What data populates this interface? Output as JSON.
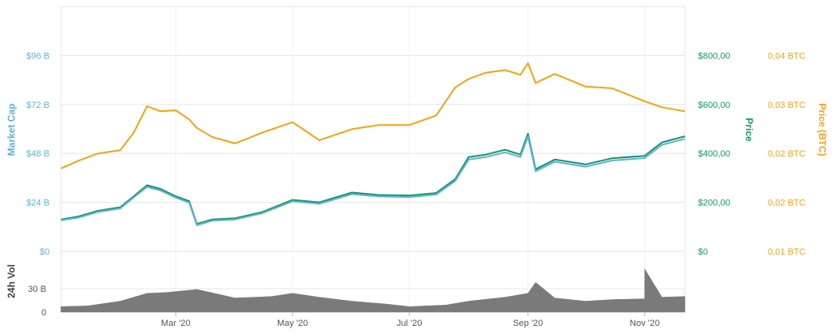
{
  "chart_data": {
    "type": "line",
    "axes": {
      "market_cap": {
        "title": "Market Cap",
        "ticks": [
          "$96 B",
          "$72 B",
          "$48 B",
          "$24 B",
          "$0"
        ],
        "tick_values": [
          96,
          72,
          48,
          24,
          0
        ],
        "range": [
          0,
          120
        ],
        "color": "#5fb2d8"
      },
      "price": {
        "title": "Price",
        "ticks": [
          "$800,00",
          "$600,00",
          "$400,00",
          "$200,00",
          "$0"
        ],
        "tick_values": [
          800,
          600,
          400,
          200,
          0
        ],
        "range": [
          0,
          1000
        ],
        "color": "#14966d"
      },
      "price_btc": {
        "title": "Price (BTC)",
        "ticks": [
          "0,04 BTC",
          "0,03 BTC",
          "0,02 BTC",
          "0,02 BTC",
          "0,01 BTC"
        ],
        "color": "#f5a214"
      },
      "volume": {
        "title": "24h Vol",
        "ticks": [
          "30 B",
          "0"
        ],
        "tick_values": [
          30,
          0
        ],
        "range": [
          0,
          60
        ],
        "color": "#7a7a7a"
      }
    },
    "x_axis": {
      "ticks": [
        "Mar '20",
        "May '20",
        "Jul '20",
        "Sep '20",
        "Nov '20"
      ],
      "tick_dates": [
        "2020-03-01",
        "2020-05-01",
        "2020-07-01",
        "2020-09-01",
        "2020-11-01"
      ],
      "range": [
        "2020-01-01",
        "2020-11-22"
      ]
    },
    "series": [
      {
        "axis": "price",
        "color": "#14966d",
        "points": [
          [
            "2020-01-01",
            130
          ],
          [
            "2020-01-10",
            142
          ],
          [
            "2020-01-20",
            165
          ],
          [
            "2020-02-01",
            180
          ],
          [
            "2020-02-08",
            225
          ],
          [
            "2020-02-15",
            270
          ],
          [
            "2020-02-22",
            255
          ],
          [
            "2020-03-01",
            225
          ],
          [
            "2020-03-08",
            205
          ],
          [
            "2020-03-12",
            112
          ],
          [
            "2020-03-20",
            130
          ],
          [
            "2020-04-01",
            135
          ],
          [
            "2020-04-15",
            160
          ],
          [
            "2020-05-01",
            210
          ],
          [
            "2020-05-15",
            200
          ],
          [
            "2020-06-01",
            240
          ],
          [
            "2020-06-15",
            230
          ],
          [
            "2020-07-01",
            228
          ],
          [
            "2020-07-15",
            238
          ],
          [
            "2020-07-25",
            295
          ],
          [
            "2020-08-01",
            385
          ],
          [
            "2020-08-10",
            395
          ],
          [
            "2020-08-20",
            415
          ],
          [
            "2020-08-28",
            395
          ],
          [
            "2020-09-01",
            480
          ],
          [
            "2020-09-05",
            335
          ],
          [
            "2020-09-15",
            375
          ],
          [
            "2020-10-01",
            355
          ],
          [
            "2020-10-15",
            380
          ],
          [
            "2020-11-01",
            390
          ],
          [
            "2020-11-10",
            445
          ],
          [
            "2020-11-22",
            470
          ]
        ]
      },
      {
        "axis": "market_cap",
        "color": "#5fb2d8",
        "points": [
          [
            "2020-01-01",
            15.2
          ],
          [
            "2020-01-10",
            16.5
          ],
          [
            "2020-01-20",
            19.2
          ],
          [
            "2020-02-01",
            21.0
          ],
          [
            "2020-02-08",
            26.4
          ],
          [
            "2020-02-15",
            31.6
          ],
          [
            "2020-02-22",
            29.8
          ],
          [
            "2020-03-01",
            26.3
          ],
          [
            "2020-03-08",
            23.9
          ],
          [
            "2020-03-12",
            12.8
          ],
          [
            "2020-03-20",
            15.0
          ],
          [
            "2020-04-01",
            15.6
          ],
          [
            "2020-04-15",
            18.6
          ],
          [
            "2020-05-01",
            24.5
          ],
          [
            "2020-05-15",
            23.3
          ],
          [
            "2020-06-01",
            28.0
          ],
          [
            "2020-06-15",
            26.9
          ],
          [
            "2020-07-01",
            26.6
          ],
          [
            "2020-07-15",
            27.8
          ],
          [
            "2020-07-25",
            34.5
          ],
          [
            "2020-08-01",
            45.0
          ],
          [
            "2020-08-10",
            46.2
          ],
          [
            "2020-08-20",
            48.5
          ],
          [
            "2020-08-28",
            46.2
          ],
          [
            "2020-09-01",
            56.3
          ],
          [
            "2020-09-05",
            39.2
          ],
          [
            "2020-09-15",
            43.9
          ],
          [
            "2020-10-01",
            41.5
          ],
          [
            "2020-10-15",
            44.5
          ],
          [
            "2020-11-01",
            45.7
          ],
          [
            "2020-11-10",
            52.2
          ],
          [
            "2020-11-22",
            55.1
          ]
        ]
      },
      {
        "axis": "price_btc",
        "color": "#f5a214",
        "points": [
          [
            "2020-01-01",
            0.018
          ],
          [
            "2020-01-10",
            0.019
          ],
          [
            "2020-01-20",
            0.02
          ],
          [
            "2020-02-01",
            0.0205
          ],
          [
            "2020-02-08",
            0.0232
          ],
          [
            "2020-02-15",
            0.028
          ],
          [
            "2020-02-22",
            0.027
          ],
          [
            "2020-03-01",
            0.0272
          ],
          [
            "2020-03-08",
            0.0255
          ],
          [
            "2020-03-12",
            0.024
          ],
          [
            "2020-03-20",
            0.0225
          ],
          [
            "2020-04-01",
            0.0215
          ],
          [
            "2020-04-15",
            0.0232
          ],
          [
            "2020-05-01",
            0.025
          ],
          [
            "2020-05-15",
            0.022
          ],
          [
            "2020-06-01",
            0.0238
          ],
          [
            "2020-06-15",
            0.0245
          ],
          [
            "2020-07-01",
            0.0245
          ],
          [
            "2020-07-15",
            0.0262
          ],
          [
            "2020-07-25",
            0.032
          ],
          [
            "2020-08-01",
            0.034
          ],
          [
            "2020-08-10",
            0.0355
          ],
          [
            "2020-08-20",
            0.0362
          ],
          [
            "2020-08-28",
            0.035
          ],
          [
            "2020-09-01",
            0.038
          ],
          [
            "2020-09-05",
            0.033
          ],
          [
            "2020-09-15",
            0.0352
          ],
          [
            "2020-10-01",
            0.0322
          ],
          [
            "2020-10-15",
            0.0318
          ],
          [
            "2020-11-01",
            0.029
          ],
          [
            "2020-11-10",
            0.0278
          ],
          [
            "2020-11-22",
            0.027
          ]
        ]
      }
    ],
    "volume": {
      "points": [
        [
          "2020-01-01",
          7
        ],
        [
          "2020-01-15",
          8
        ],
        [
          "2020-02-01",
          14
        ],
        [
          "2020-02-15",
          24
        ],
        [
          "2020-02-25",
          25
        ],
        [
          "2020-03-12",
          29
        ],
        [
          "2020-04-01",
          18
        ],
        [
          "2020-04-20",
          20
        ],
        [
          "2020-05-01",
          24
        ],
        [
          "2020-05-15",
          19
        ],
        [
          "2020-06-01",
          14
        ],
        [
          "2020-06-20",
          10
        ],
        [
          "2020-07-01",
          7
        ],
        [
          "2020-07-20",
          9
        ],
        [
          "2020-08-01",
          14
        ],
        [
          "2020-08-20",
          19
        ],
        [
          "2020-09-01",
          24
        ],
        [
          "2020-09-05",
          38
        ],
        [
          "2020-09-15",
          18
        ],
        [
          "2020-10-01",
          14
        ],
        [
          "2020-10-15",
          16
        ],
        [
          "2020-11-01",
          17
        ],
        [
          "2020-11-01",
          55
        ],
        [
          "2020-11-10",
          19
        ],
        [
          "2020-11-22",
          20
        ]
      ],
      "color": "#7a7a7a"
    },
    "grid": true
  }
}
